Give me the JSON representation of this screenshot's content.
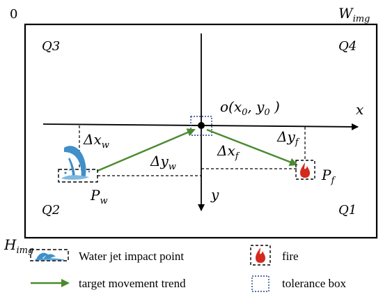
{
  "corner_labels": {
    "origin": "0",
    "width": "W",
    "width_sub": "img",
    "height": "H",
    "height_sub": "img"
  },
  "quadrants": {
    "q1": "Q1",
    "q2": "Q2",
    "q3": "Q3",
    "q4": "Q4"
  },
  "axes": {
    "x": "x",
    "y": "y"
  },
  "center_label": {
    "prefix": "o(x",
    "sub0": "0",
    "mid": ", y",
    "sub1": "0",
    "suffix": " )"
  },
  "deltas": {
    "dxw": "Δx",
    "dxw_sub": "w",
    "dyw": "Δy",
    "dyw_sub": "w",
    "dxf": "Δx",
    "dxf_sub": "f",
    "dyf": "Δy",
    "dyf_sub": "f"
  },
  "points": {
    "pw": "P",
    "pw_sub": "w",
    "pf": "P",
    "pf_sub": "f"
  },
  "legend": {
    "water": "Water jet impact point",
    "fire": "fire",
    "trend": "target movement trend",
    "tolerance": "tolerance box"
  },
  "colors": {
    "arrow_green": "#4a8a2e",
    "fire_red": "#d42a1e",
    "water_blue": "#3f8fc9",
    "tolerance_blue": "#1f3f8f"
  },
  "icons": [
    "water-splash-icon",
    "fire-icon"
  ]
}
